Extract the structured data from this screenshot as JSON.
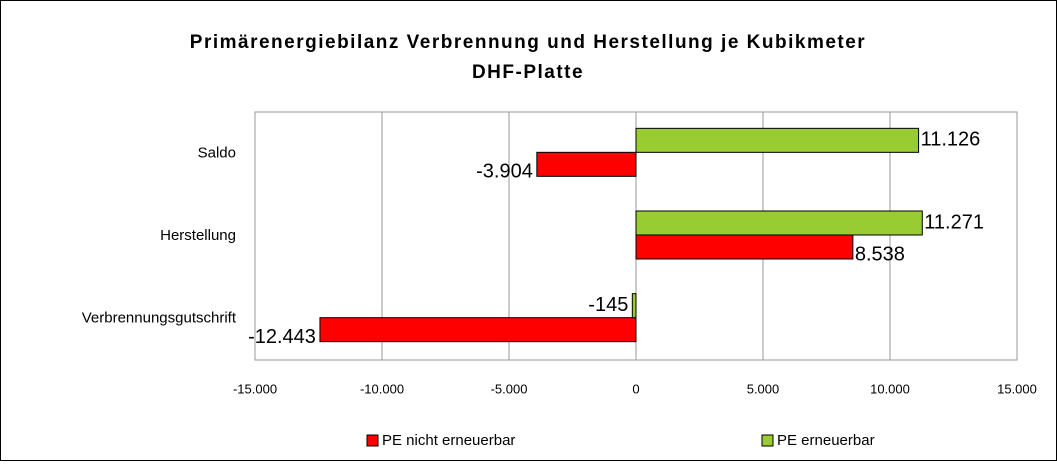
{
  "chart_data": {
    "type": "hbar",
    "title": [
      "Primärenergiebilanz Verbrennung und Herstellung je Kubikmeter",
      "DHF-Platte"
    ],
    "categories": [
      "Saldo",
      "Herstellung",
      "Verbrennungsgutschrift"
    ],
    "series": [
      {
        "name": "PE nicht erneuerbar",
        "color": "#ff0000",
        "values": [
          -3904,
          8538,
          -12443
        ],
        "value_labels": [
          "-3.904",
          "8.538",
          "-12.443"
        ]
      },
      {
        "name": "PE erneuerbar",
        "color": "#99cc33",
        "values": [
          11126,
          11271,
          -145
        ],
        "value_labels": [
          "11.126",
          "11.271",
          "-145"
        ]
      }
    ],
    "xlim": [
      -15000,
      15000
    ],
    "xticks": [
      {
        "value": -15000,
        "label": "-15.000"
      },
      {
        "value": -10000,
        "label": "-10.000"
      },
      {
        "value": -5000,
        "label": "-5.000"
      },
      0,
      {
        "value": 5000,
        "label": "5.000"
      },
      {
        "value": 10000,
        "label": "10.000"
      },
      {
        "value": 15000,
        "label": "15.000"
      }
    ],
    "grid": true,
    "legend": "bottom"
  }
}
